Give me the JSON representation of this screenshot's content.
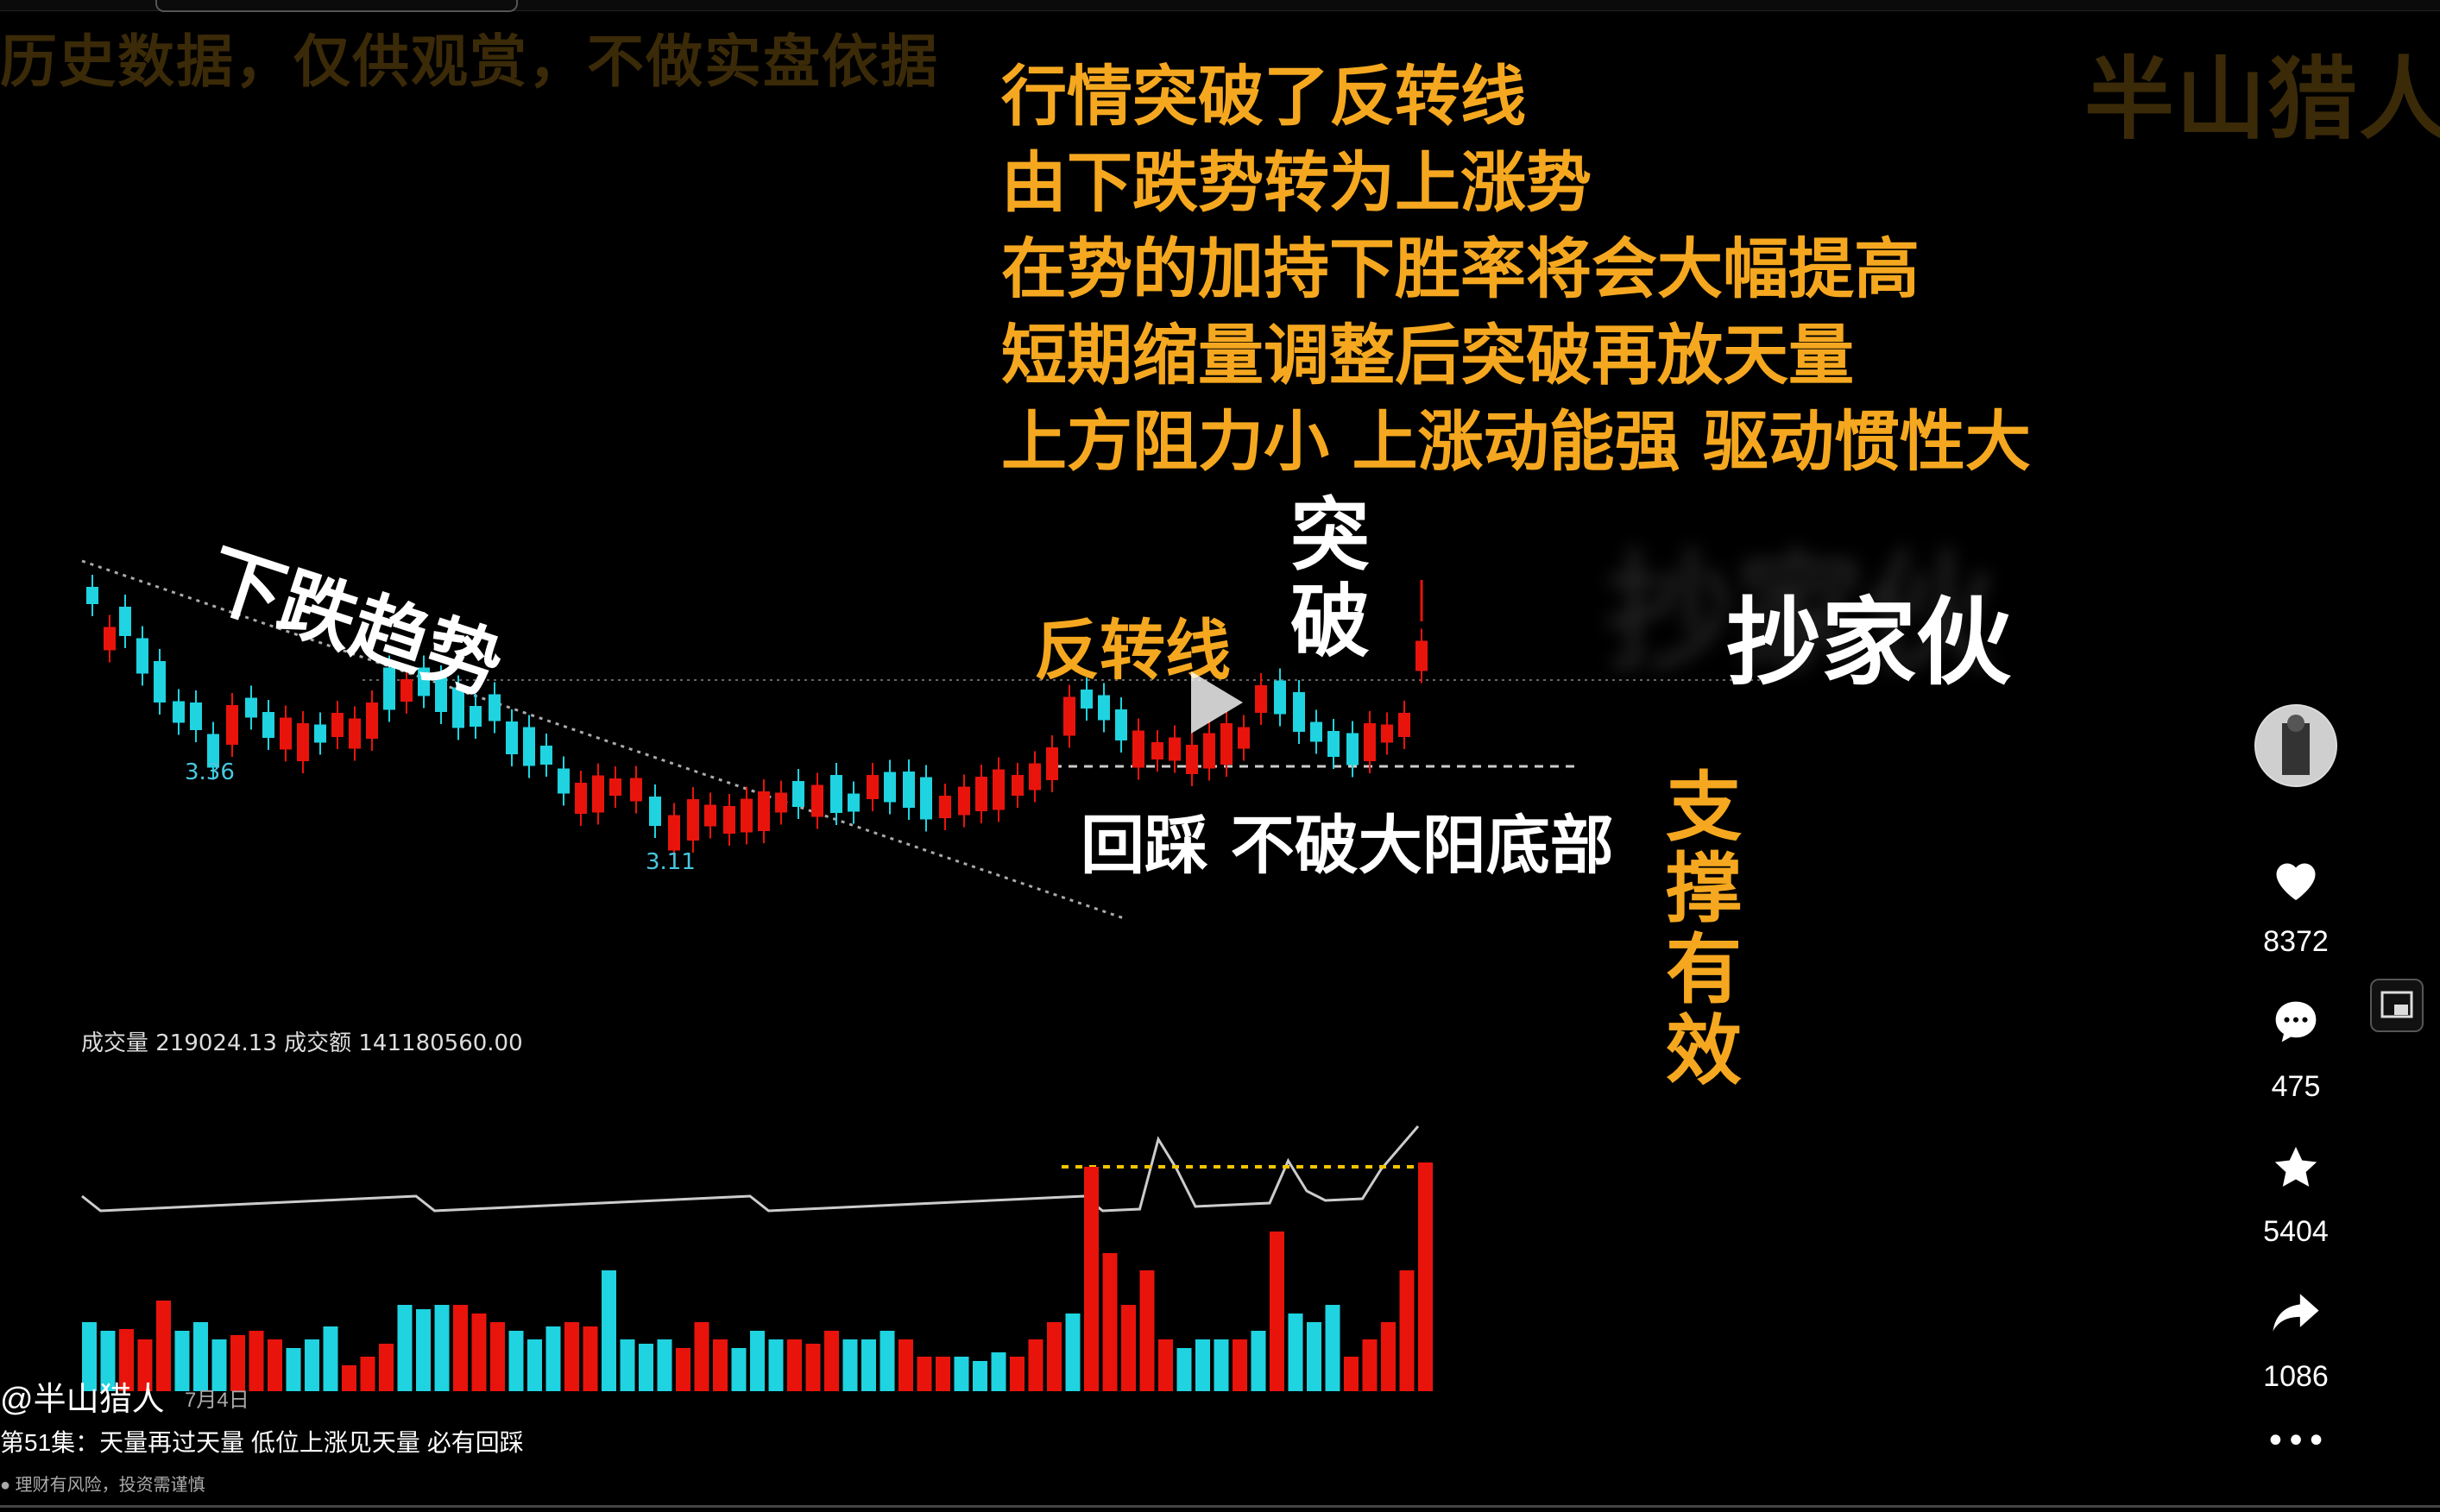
{
  "watermarks": {
    "top_left": "历史数据，仅供观赏，不做实盘依据",
    "top_right": "半山猎人"
  },
  "caption_lines": [
    "行情突破了反转线",
    "由下跌势转为上涨势",
    "在势的加持下胜率将会大幅提高",
    "短期缩量调整后突破再放天量",
    "上方阻力小  上涨动能强  驱动惯性大"
  ],
  "labels": {
    "downtrend": "下跌趋势",
    "reversal_line": "反转线",
    "breakout": "突破",
    "pullback": "回踩  不破大阳底部",
    "support": "支撑有效",
    "overlay_blur": "抄家伙",
    "overlay_main": "抄家伙",
    "low1": "3.36",
    "low2": "3.11",
    "volume_info": "成交量 219024.13   成交额 141180560.00"
  },
  "sidebar": {
    "likes": "8372",
    "comments": "475",
    "favorites": "5404",
    "shares": "1086"
  },
  "post": {
    "author": "@半山猎人",
    "date": "7月4日",
    "title": "第51集：天量再过天量 低位上涨见天量 必有回踩",
    "risk": "理财有风险，投资需谨慎"
  },
  "colors": {
    "up": "#e8140c",
    "down": "#1fd3e0",
    "caption": "#f5a81f"
  },
  "icons": [
    "heart-icon",
    "comment-icon",
    "star-icon",
    "share-icon",
    "more-icon",
    "pip-icon",
    "play-icon"
  ]
}
